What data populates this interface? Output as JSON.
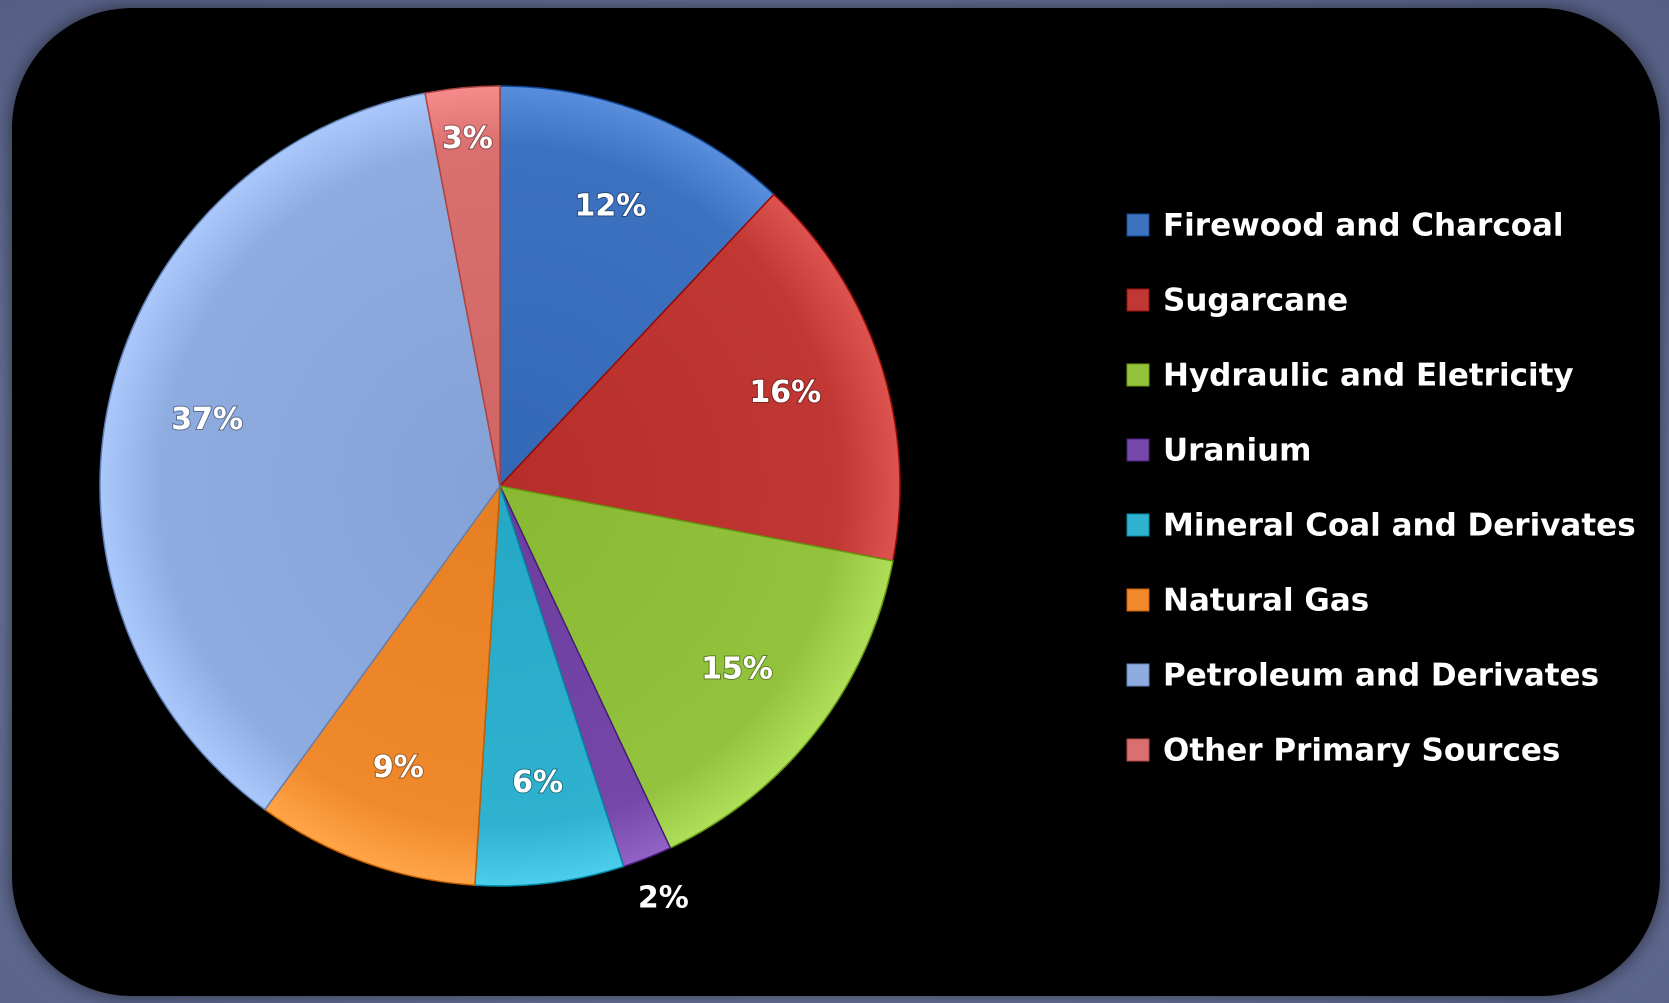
{
  "chart_data": {
    "type": "pie",
    "title": "",
    "legend_position": "right",
    "labels": [
      "Firewood and Charcoal",
      "Sugarcane",
      "Hydraulic and Eletricity",
      "Uranium",
      "Mineral Coal and Derivates",
      "Natural Gas",
      "Petroleum and Derivates",
      "Other Primary Sources"
    ],
    "values": [
      12,
      16,
      15,
      2,
      6,
      9,
      37,
      3
    ],
    "value_labels": [
      "12%",
      "16%",
      "15%",
      "2%",
      "6%",
      "9%",
      "37%",
      "3%"
    ],
    "colors": [
      "#3d72c0",
      "#c03733",
      "#93c33d",
      "#7447a8",
      "#2fb2cf",
      "#f0892c",
      "#8eace0",
      "#d9706f"
    ]
  }
}
